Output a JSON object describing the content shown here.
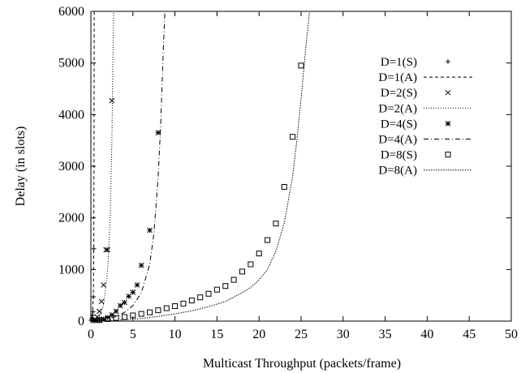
{
  "chart_data": {
    "type": "line",
    "title": "",
    "xlabel": "Multicast Throughput (packets/frame)",
    "ylabel": "Delay (in slots)",
    "xlim": [
      0,
      50
    ],
    "ylim": [
      0,
      6000
    ],
    "xticks": [
      0,
      5,
      10,
      15,
      20,
      25,
      30,
      35,
      40,
      45,
      50
    ],
    "yticks": [
      0,
      1000,
      2000,
      3000,
      4000,
      5000,
      6000
    ],
    "grid": false,
    "legend_position": "top-right",
    "series": [
      {
        "name": "D=1(S)",
        "style": "points",
        "marker": "plus",
        "x": [
          0.05,
          0.1,
          0.15,
          0.2,
          0.25,
          0.3,
          0.35
        ],
        "y": [
          10,
          30,
          60,
          110,
          180,
          470,
          1400
        ]
      },
      {
        "name": "D=1(A)",
        "style": "line",
        "dash": "dashed",
        "x": [
          0.0,
          0.1,
          0.2,
          0.3,
          0.35,
          0.38,
          0.4
        ],
        "y": [
          0,
          40,
          150,
          550,
          1500,
          3500,
          6000
        ]
      },
      {
        "name": "D=2(S)",
        "style": "points",
        "marker": "cross",
        "x": [
          0.25,
          0.5,
          0.75,
          1.0,
          1.25,
          1.5,
          1.8,
          2.0,
          2.5
        ],
        "y": [
          10,
          30,
          80,
          190,
          380,
          700,
          1380,
          1380,
          4270
        ]
      },
      {
        "name": "D=2(A)",
        "style": "line",
        "dash": "dotted",
        "x": [
          0.0,
          0.5,
          1.0,
          1.5,
          2.0,
          2.3,
          2.5,
          2.6,
          2.7
        ],
        "y": [
          0,
          20,
          80,
          300,
          1000,
          2000,
          3500,
          4800,
          6000
        ]
      },
      {
        "name": "D=4(S)",
        "style": "points",
        "marker": "star",
        "x": [
          0.5,
          1.0,
          1.5,
          2.0,
          2.5,
          3.0,
          3.5,
          4.0,
          4.5,
          5.0,
          5.5,
          6.0,
          7.0,
          8.0
        ],
        "y": [
          10,
          20,
          40,
          70,
          120,
          190,
          300,
          360,
          480,
          560,
          700,
          1080,
          1760,
          3650
        ]
      },
      {
        "name": "D=4(A)",
        "style": "line",
        "dash": "dashdot",
        "x": [
          0.0,
          1.0,
          2.0,
          3.0,
          4.0,
          5.0,
          6.0,
          7.0,
          7.5,
          8.0,
          8.3,
          8.6,
          8.8
        ],
        "y": [
          0,
          15,
          40,
          90,
          170,
          300,
          550,
          1100,
          1700,
          2800,
          3800,
          5200,
          6000
        ]
      },
      {
        "name": "D=8(S)",
        "style": "points",
        "marker": "square",
        "x": [
          1,
          2,
          3,
          4,
          5,
          6,
          7,
          8,
          9,
          10,
          11,
          12,
          13,
          14,
          15,
          16,
          17,
          18,
          19,
          20,
          21,
          22,
          23,
          24,
          25
        ],
        "y": [
          20,
          40,
          60,
          80,
          110,
          140,
          170,
          210,
          250,
          290,
          340,
          400,
          460,
          530,
          610,
          680,
          800,
          960,
          1100,
          1310,
          1570,
          1890,
          2600,
          3570,
          4950
        ]
      },
      {
        "name": "D=8(A)",
        "style": "line",
        "dash": "fine-dotted",
        "x": [
          0,
          2,
          4,
          6,
          8,
          10,
          12,
          14,
          16,
          18,
          19,
          20,
          21,
          22,
          23,
          24,
          24.5,
          25,
          25.5,
          26
        ],
        "y": [
          0,
          10,
          25,
          50,
          90,
          140,
          200,
          280,
          380,
          550,
          650,
          800,
          1000,
          1350,
          1900,
          2800,
          3500,
          4300,
          5200,
          6000
        ]
      }
    ]
  }
}
